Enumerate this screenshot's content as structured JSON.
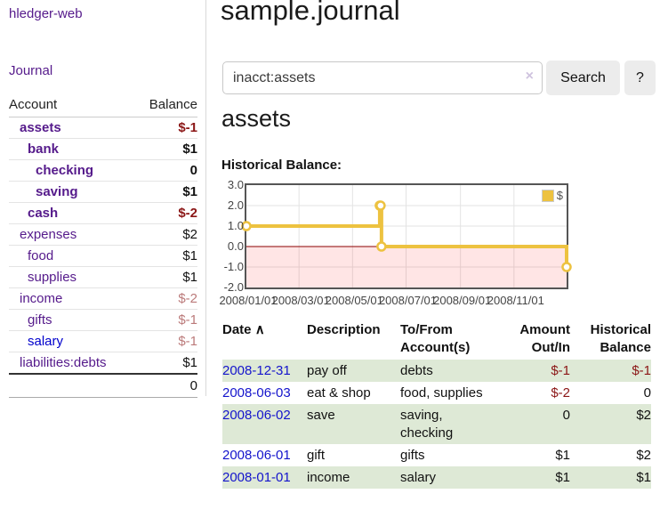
{
  "brand": "hledger-web",
  "nav": {
    "journal": "Journal"
  },
  "sidebar": {
    "headers": {
      "account": "Account",
      "balance": "Balance"
    },
    "accounts": [
      {
        "name": "assets",
        "balance": "$-1",
        "indent": 0,
        "matched": true,
        "balance_tone": "neg-strong",
        "link_tone": "visited"
      },
      {
        "name": "bank",
        "balance": "$1",
        "indent": 1,
        "matched": true,
        "balance_tone": "pos",
        "link_tone": "visited"
      },
      {
        "name": "checking",
        "balance": "0",
        "indent": 2,
        "matched": true,
        "balance_tone": "pos",
        "link_tone": "visited"
      },
      {
        "name": "saving",
        "balance": "$1",
        "indent": 2,
        "matched": true,
        "balance_tone": "pos",
        "link_tone": "visited"
      },
      {
        "name": "cash",
        "balance": "$-2",
        "indent": 1,
        "matched": true,
        "balance_tone": "neg-strong",
        "link_tone": "visited"
      },
      {
        "name": "expenses",
        "balance": "$2",
        "indent": 0,
        "matched": false,
        "balance_tone": "pos",
        "link_tone": "visited"
      },
      {
        "name": "food",
        "balance": "$1",
        "indent": 1,
        "matched": false,
        "balance_tone": "pos",
        "link_tone": "visited"
      },
      {
        "name": "supplies",
        "balance": "$1",
        "indent": 1,
        "matched": false,
        "balance_tone": "pos",
        "link_tone": "visited"
      },
      {
        "name": "income",
        "balance": "$-2",
        "indent": 0,
        "matched": false,
        "balance_tone": "neg-soft",
        "link_tone": "visited"
      },
      {
        "name": "gifts",
        "balance": "$-1",
        "indent": 1,
        "matched": false,
        "balance_tone": "neg-soft",
        "link_tone": "visited"
      },
      {
        "name": "salary",
        "balance": "$-1",
        "indent": 1,
        "matched": false,
        "balance_tone": "neg-soft",
        "link_tone": "unvisited"
      },
      {
        "name": "liabilities:debts",
        "balance": "$1",
        "indent": 0,
        "matched": false,
        "balance_tone": "pos",
        "link_tone": "visited"
      }
    ],
    "total": "0"
  },
  "main": {
    "title": "sample.journal",
    "search": {
      "value": "inacct:assets",
      "clear_label": "×",
      "search_button": "Search",
      "help_button": "?"
    },
    "account_heading": "assets",
    "section_label": "Historical Balance:"
  },
  "chart_data": {
    "type": "line",
    "style": "step",
    "title": "Historical Balance:",
    "series": [
      {
        "name": "$",
        "color": "#edc240",
        "points": [
          [
            "2008-01-01",
            1
          ],
          [
            "2008-06-01",
            2
          ],
          [
            "2008-06-02",
            2
          ],
          [
            "2008-06-03",
            0
          ],
          [
            "2008-12-31",
            -1
          ]
        ]
      }
    ],
    "x_range": [
      "2008-01-01",
      "2008-12-31"
    ],
    "ylim": [
      -2,
      3
    ],
    "y_ticks": [
      {
        "v": 3.0,
        "label": "3.0"
      },
      {
        "v": 2.0,
        "label": "2.0"
      },
      {
        "v": 1.0,
        "label": "1.0"
      },
      {
        "v": 0.0,
        "label": "0.0"
      },
      {
        "v": -1.0,
        "label": "-1.0"
      },
      {
        "v": -2.0,
        "label": "-2.0"
      }
    ],
    "x_ticks": [
      {
        "date": "2008-01-01",
        "label": "2008/01/01"
      },
      {
        "date": "2008-03-01",
        "label": "2008/03/01"
      },
      {
        "date": "2008-05-01",
        "label": "2008/05/01"
      },
      {
        "date": "2008-07-01",
        "label": "2008/07/01"
      },
      {
        "date": "2008-09-01",
        "label": "2008/09/01"
      },
      {
        "date": "2008-11-01",
        "label": "2008/11/01"
      }
    ],
    "legend": {
      "label": "$",
      "position": "top-right"
    },
    "grid": true,
    "grid_color": "#e3e3e3",
    "zero_line_color": "#8b0000",
    "negative_region_color": "rgba(255,0,0,0.10)"
  },
  "register": {
    "headers": {
      "date": "Date",
      "sort_icon": "∧",
      "description": "Description",
      "account": "To/From Account(s)",
      "amount": "Amount Out/In",
      "balance": "Historical Balance"
    },
    "rows": [
      {
        "date": "2008-12-31",
        "description": "pay off",
        "account_lines": [
          "debts"
        ],
        "amount": "$-1",
        "amount_neg": true,
        "balance": "$-1",
        "balance_neg": true
      },
      {
        "date": "2008-06-03",
        "description": "eat & shop",
        "account_lines": [
          "food, supplies"
        ],
        "amount": "$-2",
        "amount_neg": true,
        "balance": "0",
        "balance_neg": false
      },
      {
        "date": "2008-06-02",
        "description": "save",
        "account_lines": [
          "saving,",
          "checking"
        ],
        "amount": "0",
        "amount_neg": false,
        "balance": "$2",
        "balance_neg": false
      },
      {
        "date": "2008-06-01",
        "description": "gift",
        "account_lines": [
          "gifts"
        ],
        "amount": "$1",
        "amount_neg": false,
        "balance": "$2",
        "balance_neg": false
      },
      {
        "date": "2008-01-01",
        "description": "income",
        "account_lines": [
          "salary"
        ],
        "amount": "$1",
        "amount_neg": false,
        "balance": "$1",
        "balance_neg": false
      }
    ]
  }
}
